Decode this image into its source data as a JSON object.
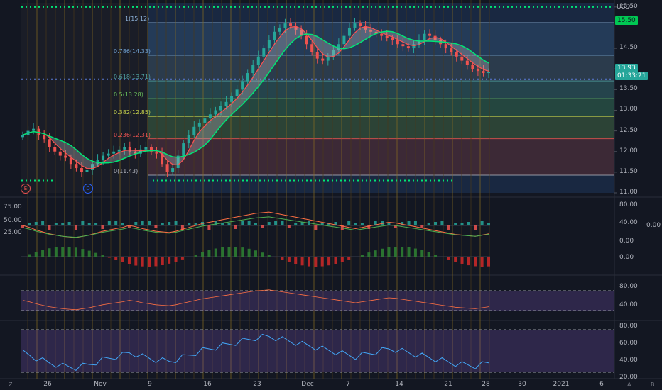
{
  "colors": {
    "background": "#131722",
    "bull": "#26a69a",
    "bear": "#ef5350",
    "green_line": "#00e676",
    "red_line": "#ff5252",
    "price_tag": "#00c853",
    "rsi_band": "#7e57c2",
    "macd_signal": "#ff7043"
  },
  "price_axis": {
    "currency": "USD",
    "ticks": [
      "15.50",
      "14.50",
      "14.00",
      "13.50",
      "13.00",
      "12.50",
      "12.00",
      "11.50",
      "11.00"
    ],
    "top_tick": "15.50",
    "last_price": "13.93",
    "countdown": "01:33:21",
    "high_marker": "15.50"
  },
  "fib": {
    "levels": [
      {
        "label": "1(15.12)",
        "value": 15.12
      },
      {
        "label": "0.786(14.33)",
        "value": 14.33
      },
      {
        "label": "0.618(13.71)",
        "value": 13.71
      },
      {
        "label": "0.5(13.28)",
        "value": 13.28
      },
      {
        "label": "0.382(12.85)",
        "value": 12.85
      },
      {
        "label": "0.236(12.31)",
        "value": 12.31
      },
      {
        "label": "0(11.43)",
        "value": 11.43
      }
    ]
  },
  "events": [
    {
      "letter": "E",
      "color": "#ef5350"
    },
    {
      "letter": "D",
      "color": "#2962ff"
    }
  ],
  "panes": {
    "macd": {
      "left_ticks": [
        "75.00",
        "50.00",
        "25.00"
      ],
      "right_ticks": [
        "80.00",
        "40.00",
        "0.00"
      ],
      "value": "0.00",
      "hist_tick": "0.00"
    },
    "rsi1": {
      "right_ticks": [
        "80.00",
        "40.00"
      ]
    },
    "rsi2": {
      "right_ticks": [
        "80.00",
        "60.00",
        "40.00",
        "20.00"
      ]
    }
  },
  "time_axis": {
    "labels": [
      "26",
      "Nov",
      "9",
      "16",
      "23",
      "Dec",
      "7",
      "14",
      "21",
      "28",
      "30",
      "2021",
      "6"
    ]
  },
  "corner": {
    "z": "Z",
    "a": "A",
    "b": "B"
  },
  "chart_data": {
    "type": "candlestick",
    "symbol_currency": "USD",
    "x_labels": [
      "26",
      "Nov",
      "9",
      "16",
      "23",
      "Dec",
      "7",
      "14",
      "21",
      "28",
      "30",
      "2021",
      "6"
    ],
    "close": [
      12.4,
      12.5,
      12.55,
      12.4,
      12.3,
      12.1,
      12.0,
      11.9,
      11.85,
      11.7,
      11.6,
      11.5,
      11.55,
      11.7,
      11.8,
      11.9,
      11.95,
      12.0,
      12.05,
      12.1,
      12.0,
      11.95,
      12.05,
      12.1,
      12.0,
      11.95,
      11.7,
      11.5,
      11.6,
      11.9,
      12.2,
      12.4,
      12.6,
      12.7,
      12.8,
      12.9,
      13.0,
      13.1,
      13.2,
      13.35,
      13.5,
      13.7,
      13.9,
      14.1,
      14.3,
      14.5,
      14.7,
      14.9,
      15.0,
      15.1,
      15.05,
      14.95,
      14.8,
      14.6,
      14.4,
      14.25,
      14.2,
      14.3,
      14.45,
      14.6,
      14.8,
      15.0,
      15.1,
      15.05,
      14.95,
      14.9,
      14.85,
      14.8,
      14.75,
      14.7,
      14.6,
      14.55,
      14.5,
      14.6,
      14.7,
      14.85,
      14.8,
      14.7,
      14.6,
      14.5,
      14.4,
      14.3,
      14.2,
      14.1,
      14.0,
      13.95,
      13.9,
      13.93
    ],
    "ylim": [
      11.0,
      15.6
    ],
    "rsi": [
      55,
      52,
      48,
      45,
      42,
      40,
      38,
      37,
      36,
      38,
      40,
      43,
      46,
      48,
      50,
      52,
      55,
      53,
      50,
      48,
      46,
      45,
      44,
      46,
      49,
      52,
      55,
      58,
      60,
      62,
      64,
      66,
      68,
      70,
      72,
      74,
      75,
      76,
      74,
      72,
      70,
      68,
      66,
      64,
      62,
      60,
      58,
      56,
      54,
      52,
      50,
      52,
      54,
      56,
      58,
      60,
      59,
      57,
      55,
      53,
      51,
      49,
      47,
      45,
      43,
      41,
      40,
      39,
      38,
      40,
      42
    ]
  }
}
